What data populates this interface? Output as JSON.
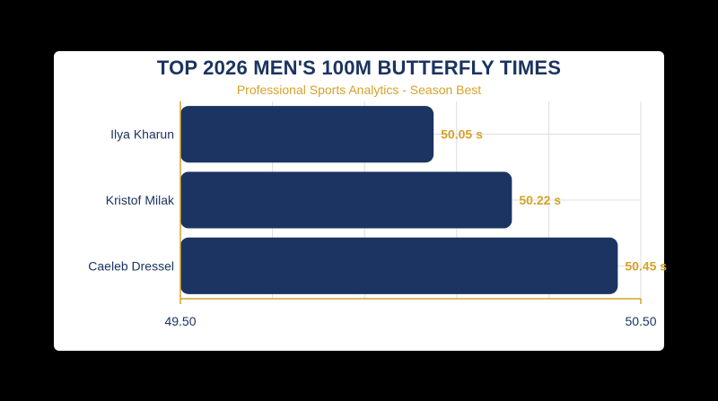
{
  "chart_data": {
    "type": "bar",
    "orientation": "horizontal",
    "title": "TOP 2026 MEN'S 100M BUTTERFLY TIMES",
    "subtitle": "Professional Sports Analytics - Season Best",
    "categories": [
      "Ilya Kharun",
      "Kristof Milak",
      "Caeleb Dressel"
    ],
    "values": [
      50.05,
      50.22,
      50.45
    ],
    "data_labels": [
      "50.05 s",
      "50.22 s",
      "50.45 s"
    ],
    "xlim": [
      49.5,
      50.5
    ],
    "x_ticks": [
      49.5,
      50.5
    ],
    "x_tick_labels": [
      "49.50",
      "50.50"
    ],
    "grid": true,
    "legend": "none",
    "colors": {
      "bar": "#1b3461",
      "accent": "#d4a22b",
      "title": "#1b3461",
      "grid": "#dddddd",
      "card": "#ffffff",
      "background": "#000000"
    }
  }
}
